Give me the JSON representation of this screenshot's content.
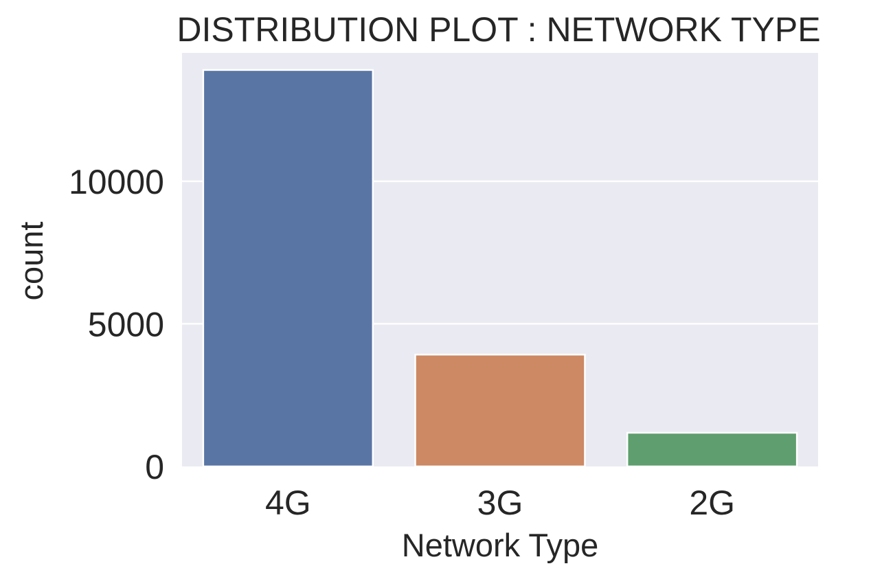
{
  "chart_data": {
    "type": "bar",
    "title": "DISTRIBUTION PLOT : NETWORK TYPE",
    "xlabel": "Network Type",
    "ylabel": "count",
    "categories": [
      "4G",
      "3G",
      "2G"
    ],
    "values": [
      13900,
      3920,
      1180
    ],
    "ylim": [
      0,
      14500
    ],
    "yticks": [
      0,
      5000,
      10000
    ],
    "ytick_labels": [
      "0",
      "5000",
      "10000"
    ],
    "grid": true,
    "legend": "none",
    "colors": {
      "background": "#eaeaf2",
      "grid": "#ffffff",
      "bars": [
        "#5975a4",
        "#cc8963",
        "#5f9e6e"
      ]
    }
  }
}
